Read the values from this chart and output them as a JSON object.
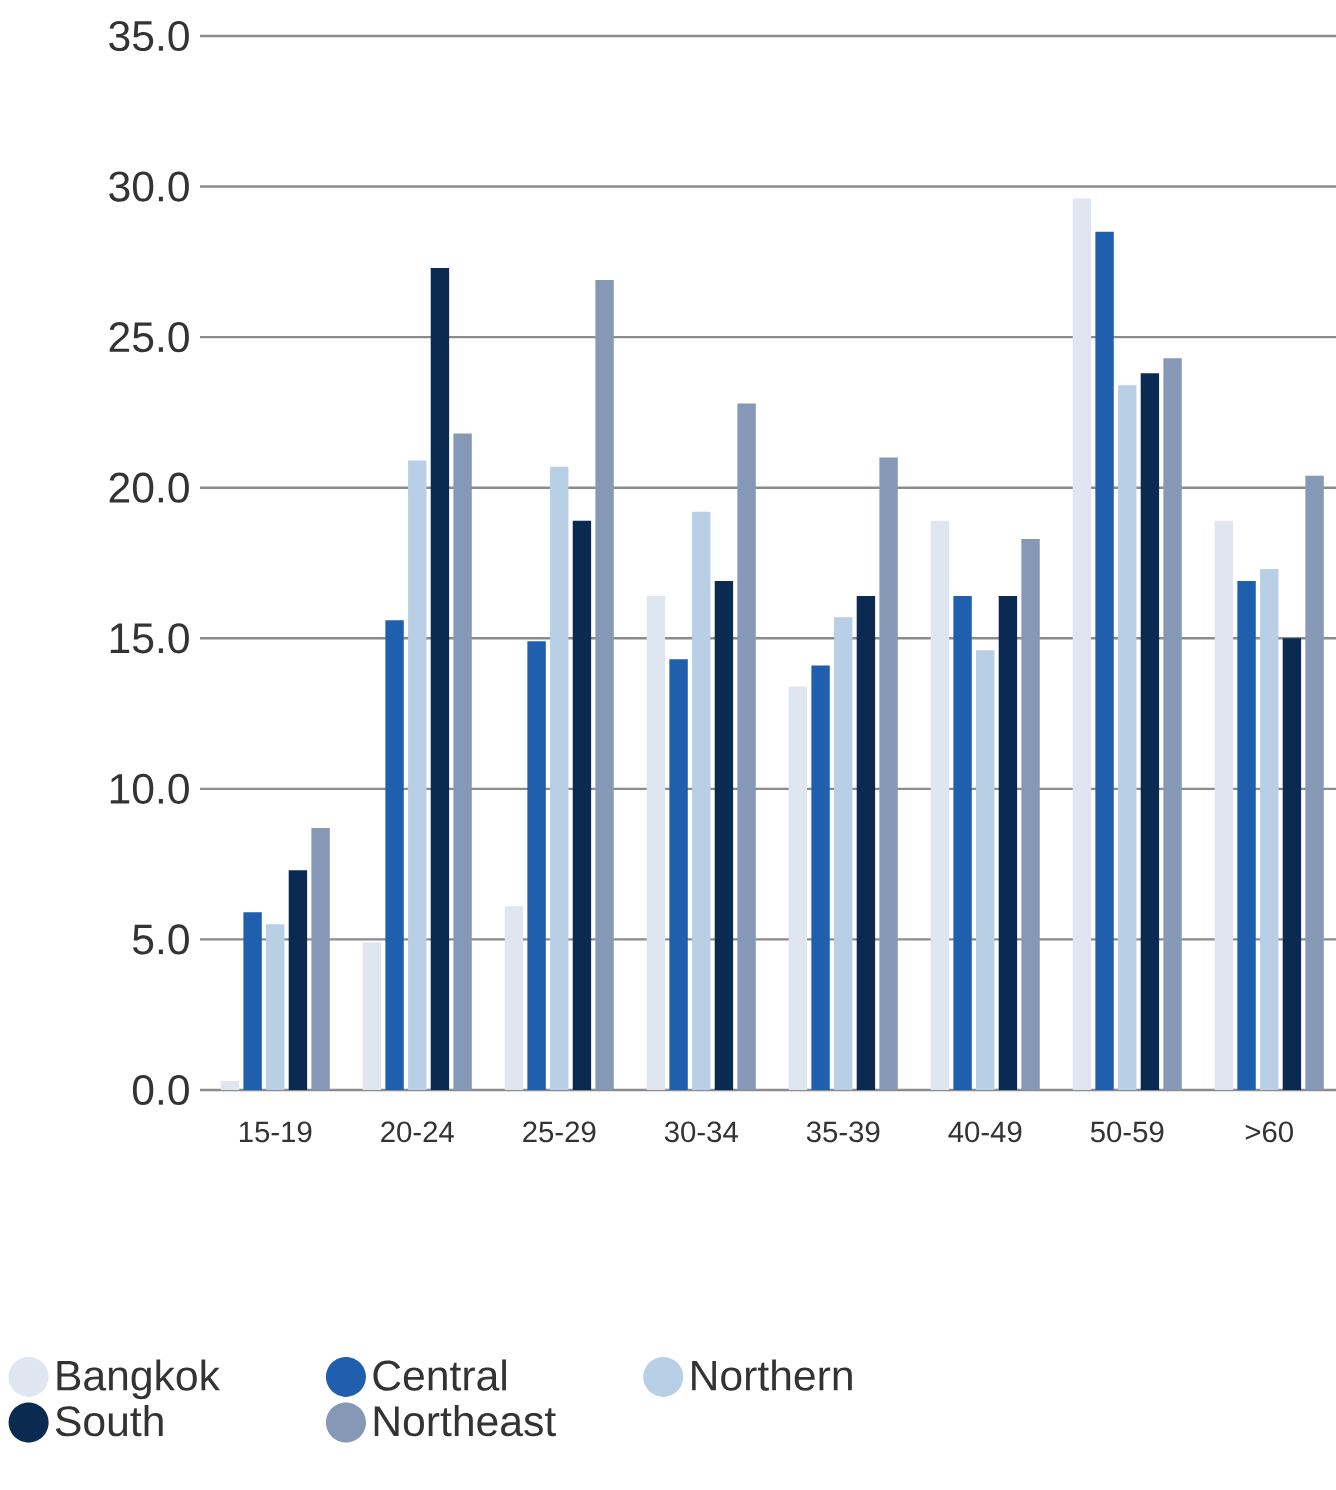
{
  "chart_data": {
    "type": "bar",
    "categories": [
      "15-19",
      "20-24",
      "25-29",
      "30-34",
      "35-39",
      "40-49",
      "50-59",
      ">60"
    ],
    "ylim": [
      0,
      35
    ],
    "yticks": [
      {
        "value": 0,
        "label": "0.0"
      },
      {
        "value": 5,
        "label": "5.0"
      },
      {
        "value": 10,
        "label": "10.0"
      },
      {
        "value": 15,
        "label": "15.0"
      },
      {
        "value": 20,
        "label": "20.0"
      },
      {
        "value": 25,
        "label": "25.0"
      },
      {
        "value": 30,
        "label": "30.0"
      },
      {
        "value": 35,
        "label": "35.0"
      }
    ],
    "grid": "y",
    "legend": "bottom",
    "series": [
      {
        "name": "Bangkok",
        "color": "#dfe6f0",
        "values": [
          0.3,
          4.9,
          6.1,
          16.4,
          13.4,
          18.9,
          29.6,
          18.9
        ]
      },
      {
        "name": "Central",
        "color": "#1f5fad",
        "values": [
          5.9,
          15.6,
          14.9,
          14.3,
          14.1,
          16.4,
          28.5,
          16.9
        ]
      },
      {
        "name": "Northern",
        "color": "#b8cfe6",
        "values": [
          5.5,
          20.9,
          20.7,
          19.2,
          15.7,
          14.6,
          23.4,
          17.3
        ]
      },
      {
        "name": "South",
        "color": "#0b2a52",
        "values": [
          7.3,
          27.3,
          18.9,
          16.9,
          16.4,
          16.4,
          23.8,
          15.0
        ]
      },
      {
        "name": "Northeast",
        "color": "#8598b5",
        "values": [
          8.7,
          21.8,
          26.9,
          22.8,
          21.0,
          18.3,
          24.3,
          20.4
        ]
      }
    ]
  }
}
